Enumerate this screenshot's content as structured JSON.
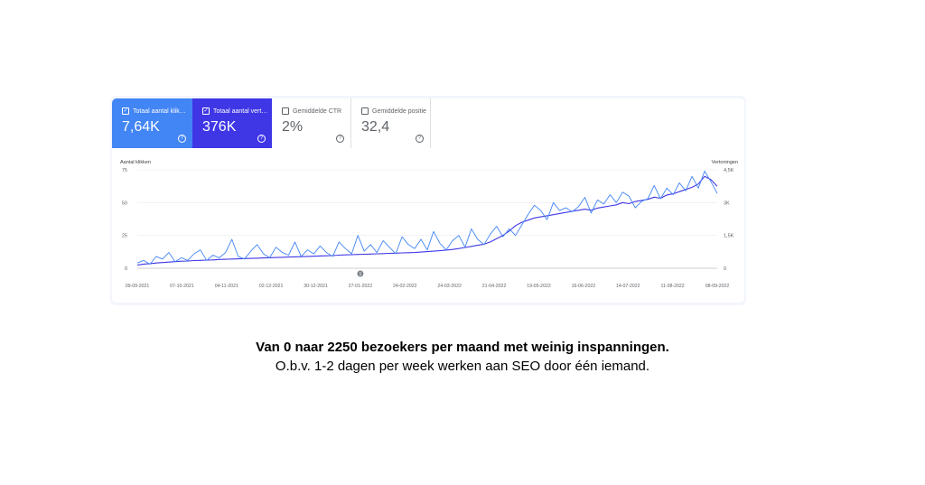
{
  "cards": [
    {
      "label": "Totaal aantal klik…",
      "value": "7,64K",
      "checked": true
    },
    {
      "label": "Totaal aantal vert…",
      "value": "376K",
      "checked": true
    },
    {
      "label": "Gemiddelde CTR",
      "value": "2%",
      "checked": false
    },
    {
      "label": "Gemiddelde positie",
      "value": "32,4",
      "checked": false
    }
  ],
  "icons": {
    "checkbox": "check-icon",
    "help": "question-circle-icon",
    "annotation": "annotation-marker-icon"
  },
  "annotation_marker": "1",
  "captions": {
    "headline": "Van 0 naar 2250 bezoekers per maand met weinig inspanningen.",
    "sub": "O.b.v. 1-2 dagen per week werken aan SEO door één iemand."
  },
  "chart_data": {
    "type": "line",
    "left_axis": {
      "label": "Aantal klikken",
      "ticks": [
        "0",
        "25",
        "50",
        "75"
      ],
      "range": [
        0,
        75
      ]
    },
    "right_axis": {
      "label": "Vertoningen",
      "ticks": [
        "0",
        "1,5K",
        "3K",
        "4,5K"
      ],
      "range": [
        0,
        4500
      ]
    },
    "x_ticks": [
      "09-09-2021",
      "07-10-2021",
      "04-11-2021",
      "02-12-2021",
      "30-12-2021",
      "27-01-2022",
      "24-02-2022",
      "24-03-2022",
      "21-04-2022",
      "19-05-2022",
      "16-06-2022",
      "14-07-2022",
      "11-08-2022",
      "08-09-2022"
    ],
    "grid": true,
    "series": [
      {
        "axis": "left",
        "color": "#4285f4",
        "values": [
          4,
          6,
          3,
          9,
          7,
          12,
          5,
          8,
          6,
          11,
          14,
          6,
          10,
          8,
          12,
          22,
          9,
          7,
          13,
          18,
          11,
          8,
          16,
          12,
          10,
          20,
          9,
          14,
          11,
          17,
          12,
          9,
          20,
          15,
          11,
          25,
          13,
          18,
          12,
          21,
          16,
          11,
          24,
          18,
          15,
          22,
          14,
          28,
          19,
          14,
          21,
          25,
          16,
          30,
          22,
          18,
          26,
          32,
          24,
          30,
          25,
          33,
          41,
          48,
          44,
          37,
          50,
          44,
          46,
          43,
          47,
          54,
          42,
          52,
          49,
          56,
          50,
          58,
          55,
          46,
          51,
          53,
          63,
          53,
          61,
          56,
          65,
          59,
          70,
          61,
          74,
          66,
          57
        ]
      },
      {
        "axis": "right",
        "color": "#3f37e6",
        "values": [
          150,
          190,
          210,
          240,
          260,
          280,
          300,
          320,
          330,
          350,
          360,
          370,
          380,
          400,
          410,
          420,
          430,
          440,
          450,
          460,
          470,
          480,
          490,
          500,
          510,
          520,
          530,
          540,
          550,
          560,
          570,
          580,
          600,
          610,
          620,
          630,
          640,
          650,
          660,
          670,
          680,
          690,
          700,
          710,
          720,
          740,
          760,
          780,
          800,
          830,
          860,
          900,
          950,
          1000,
          1050,
          1100,
          1200,
          1350,
          1500,
          1700,
          1950,
          2100,
          2200,
          2300,
          2350,
          2400,
          2450,
          2500,
          2550,
          2600,
          2650,
          2700,
          2650,
          2750,
          2800,
          2850,
          2900,
          3000,
          2950,
          3050,
          3100,
          3150,
          3250,
          3200,
          3350,
          3400,
          3500,
          3600,
          3700,
          3850,
          4200,
          4050,
          3750
        ]
      }
    ]
  }
}
